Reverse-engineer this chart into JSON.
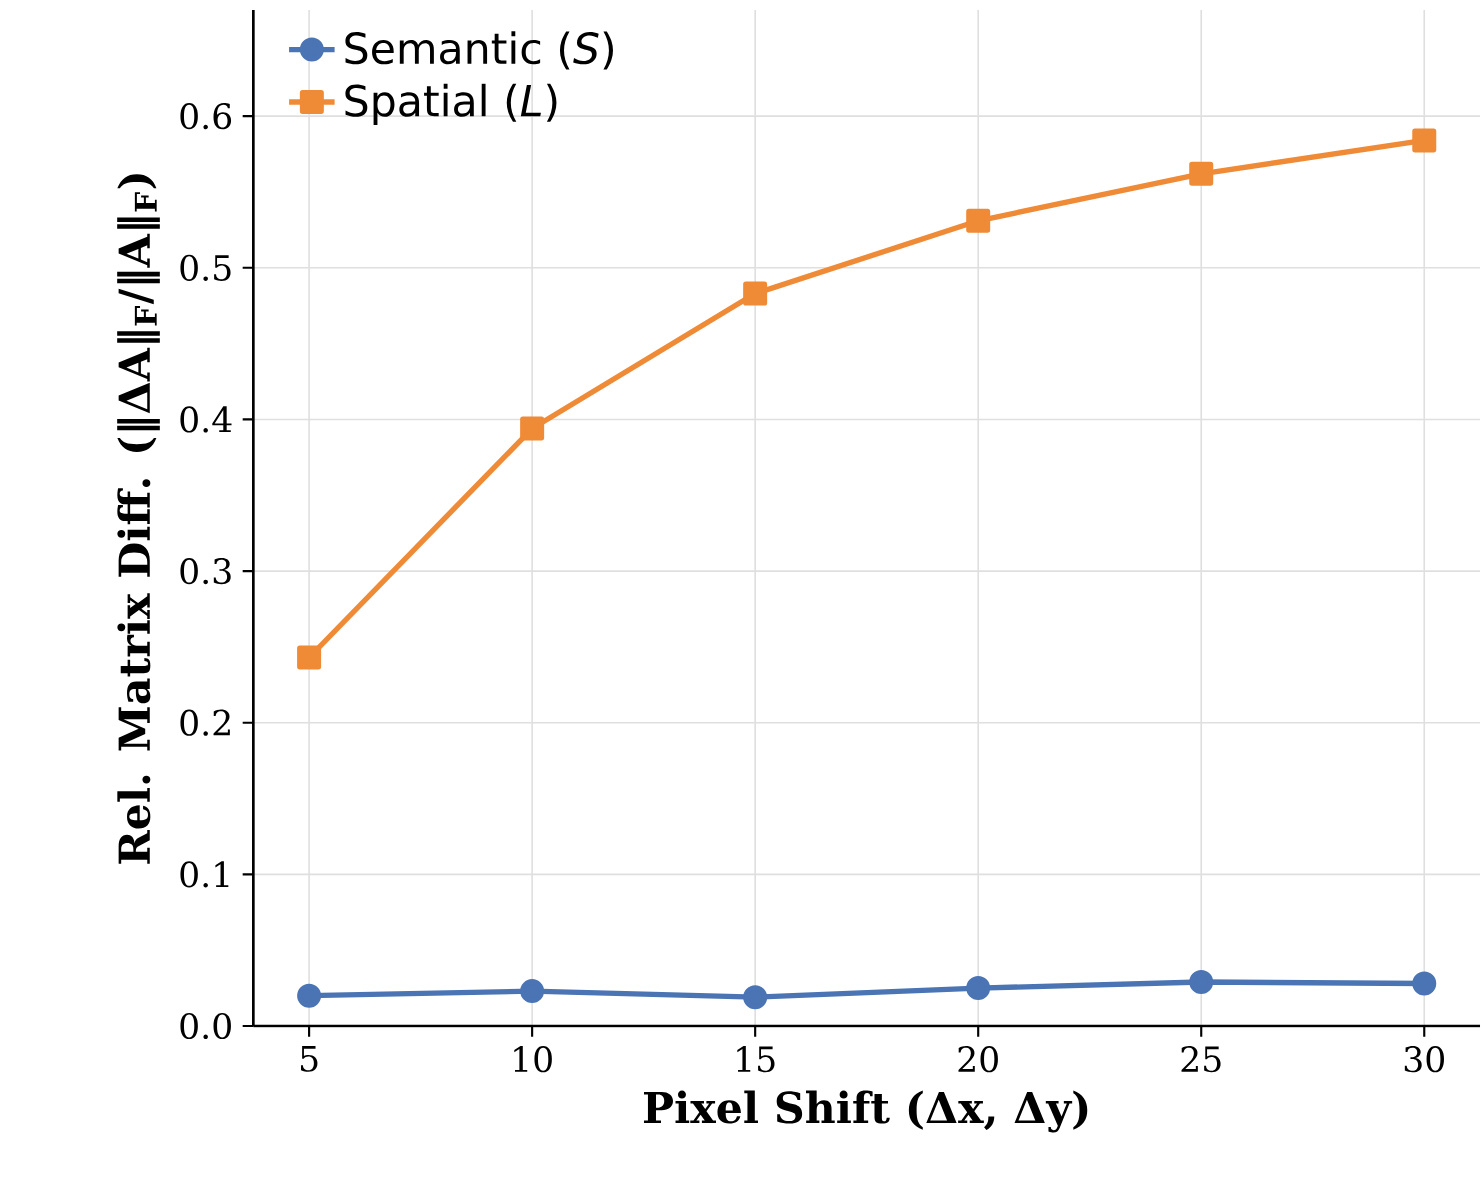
{
  "chart_data": {
    "type": "line",
    "xlabel": "Pixel Shift (Δx, Δy)",
    "ylabel": "Rel. Matrix Diff. (‖ΔA‖$_{F}$/‖A‖$_{F}$)",
    "x": [
      5,
      10,
      15,
      20,
      25,
      30
    ],
    "series": [
      {
        "name": "Semantic (*S*)",
        "color": "#4a74b4",
        "marker": "circle",
        "values": [
          0.02,
          0.023,
          0.019,
          0.025,
          0.029,
          0.028
        ]
      },
      {
        "name": "Spatial (*L*)",
        "color": "#ef8a36",
        "marker": "square",
        "values": [
          0.243,
          0.394,
          0.483,
          0.531,
          0.562,
          0.584
        ]
      }
    ],
    "xlim": [
      3.75,
      31.25
    ],
    "ylim": [
      0,
      0.67
    ],
    "xticks": [
      5,
      10,
      15,
      20,
      25,
      30
    ],
    "yticks": [
      {
        "value": 0,
        "label": "0.0"
      },
      {
        "value": 0.1,
        "label": "0.1"
      },
      {
        "value": 0.2,
        "label": "0.2"
      },
      {
        "value": 0.3,
        "label": "0.3"
      },
      {
        "value": 0.4,
        "label": "0.4"
      },
      {
        "value": 0.5,
        "label": "0.5"
      },
      {
        "value": 0.6,
        "label": "0.6"
      }
    ],
    "grid": true,
    "legend": "top left",
    "line_style": "solid"
  }
}
